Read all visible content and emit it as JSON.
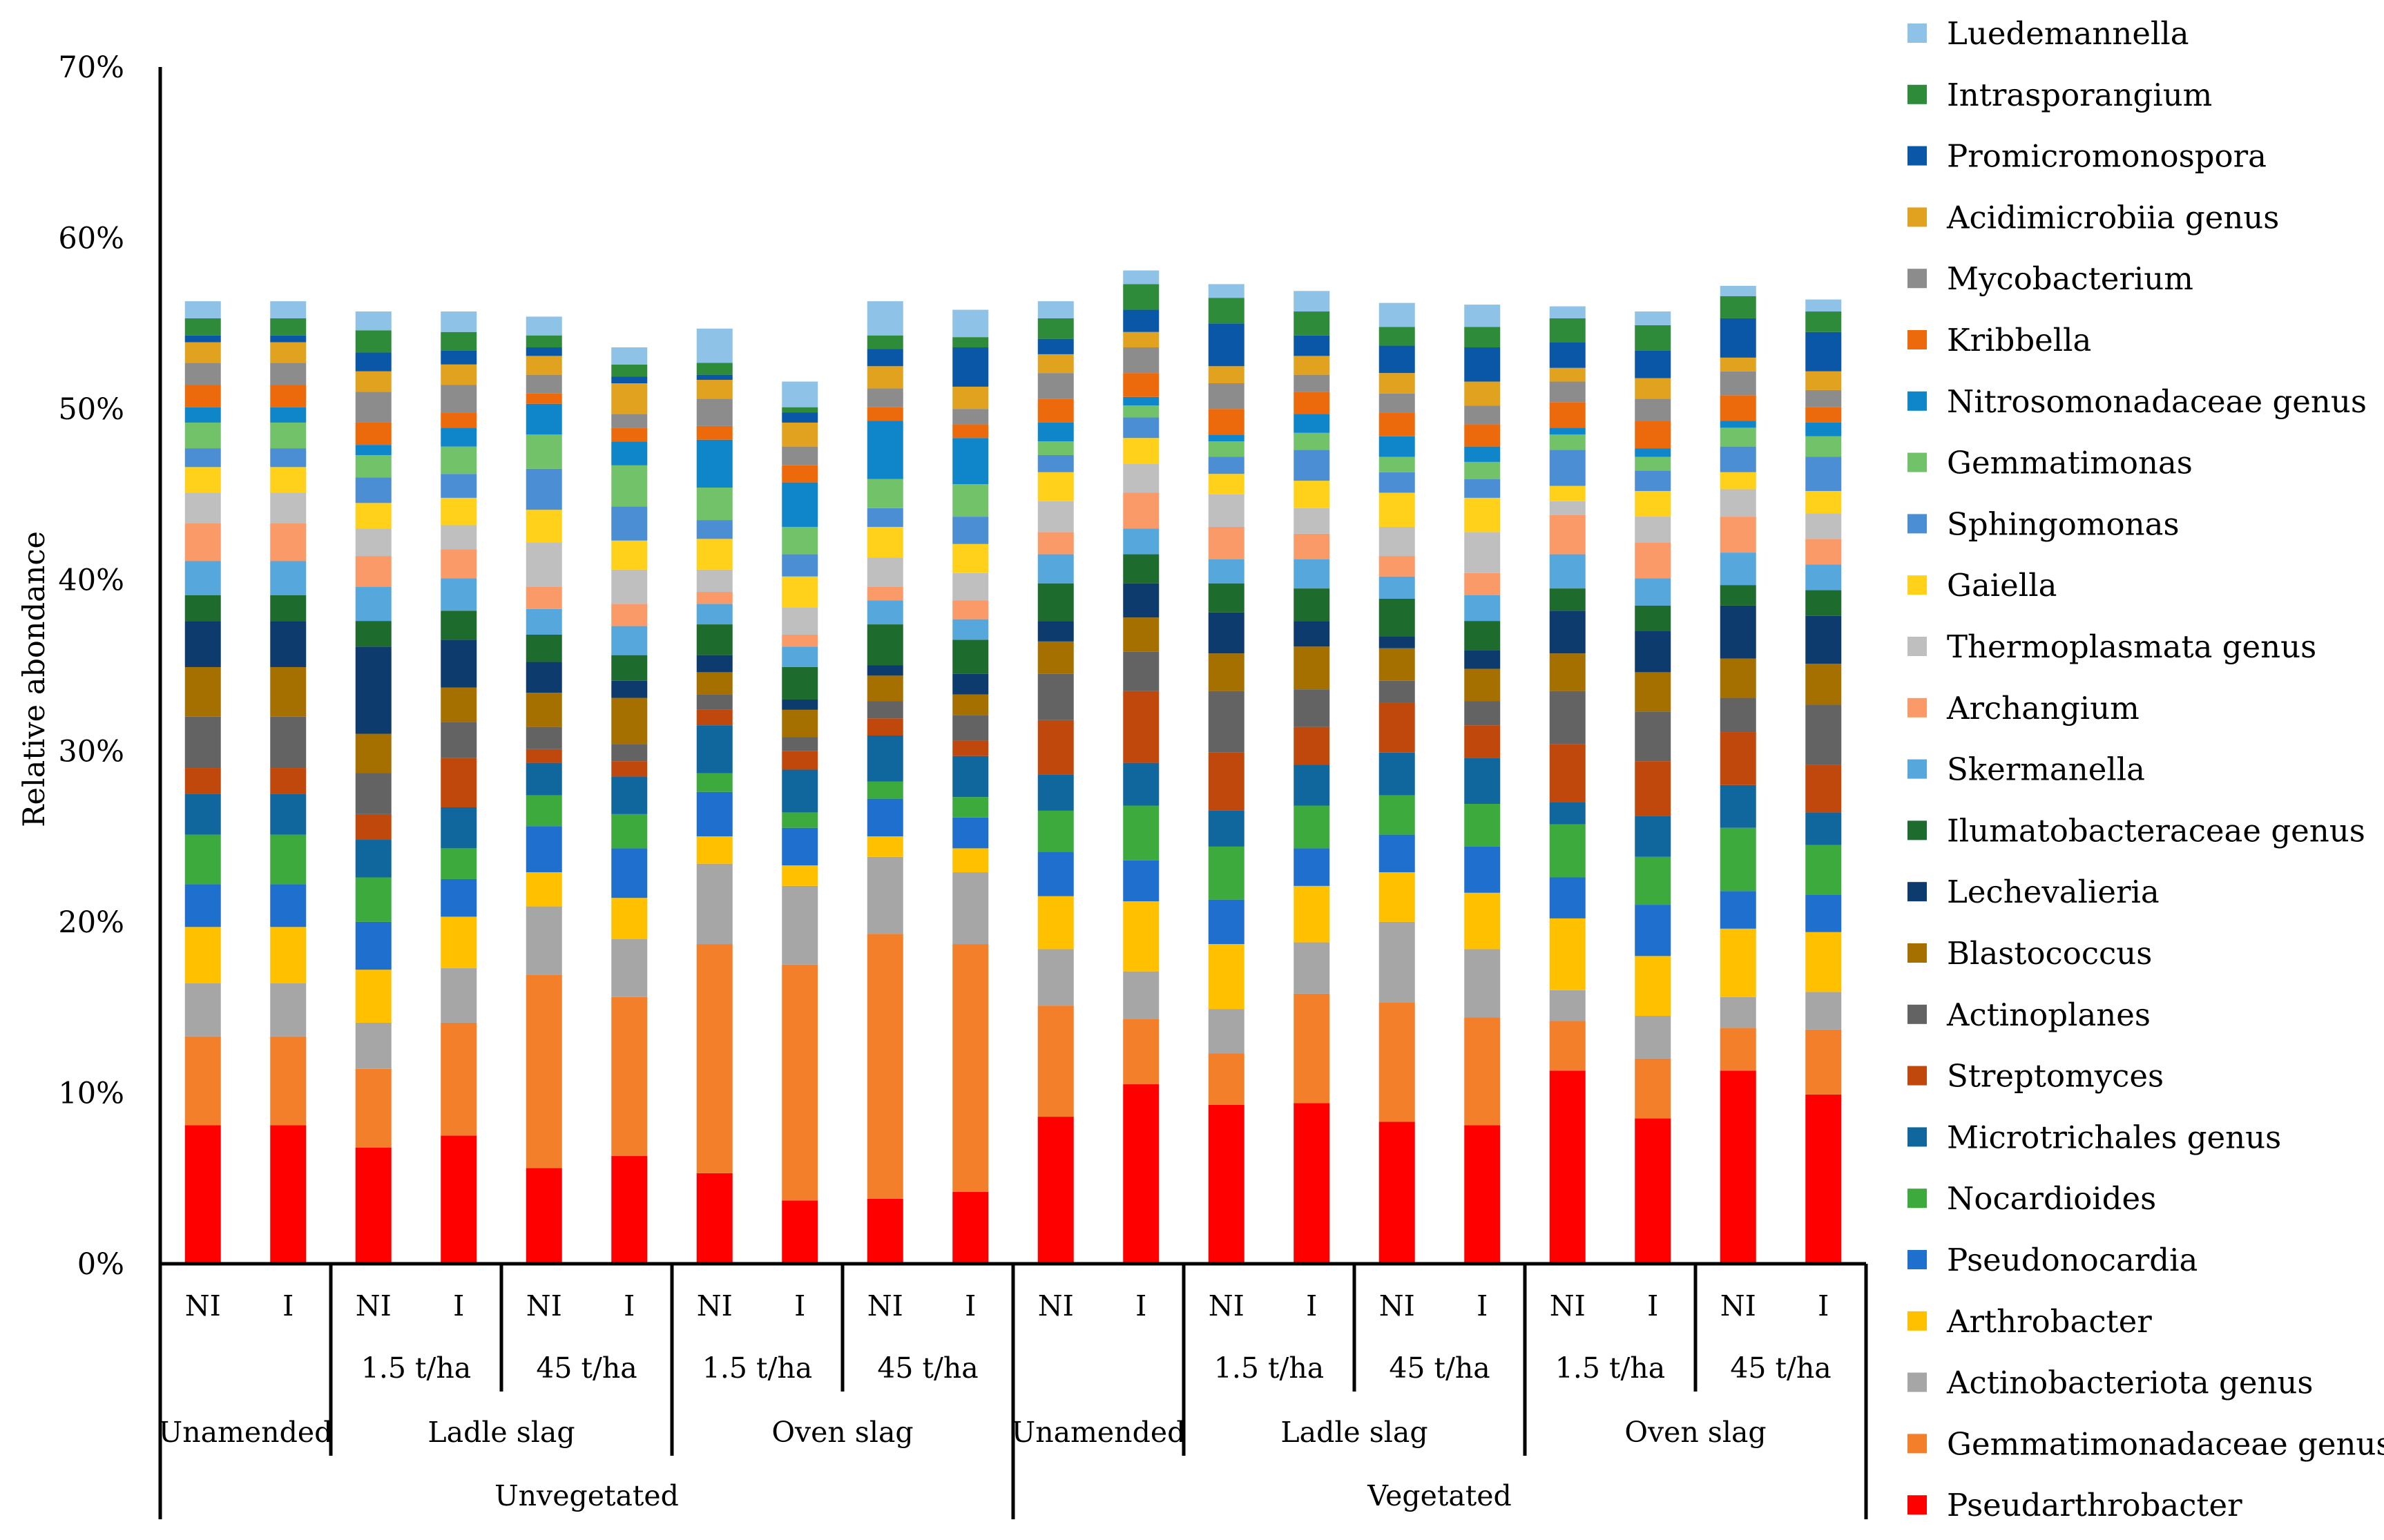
{
  "chart_data": {
    "type": "bar",
    "stacked": true,
    "ylabel": "Relative abondance",
    "ylim": [
      0,
      0.7
    ],
    "yticks": [
      "0%",
      "10%",
      "20%",
      "30%",
      "40%",
      "50%",
      "60%",
      "70%"
    ],
    "legend_position": "right",
    "bar_labels": [
      "NI",
      "I",
      "NI",
      "I",
      "NI",
      "I",
      "NI",
      "I",
      "NI",
      "I",
      "NI",
      "I",
      "NI",
      "I",
      "NI",
      "I",
      "NI",
      "I",
      "NI",
      "I"
    ],
    "groups_level1": [
      {
        "label": "",
        "span": 2
      },
      {
        "label": "1.5 t/ha",
        "span": 2
      },
      {
        "label": "45 t/ha",
        "span": 2
      },
      {
        "label": "1.5 t/ha",
        "span": 2
      },
      {
        "label": "45 t/ha",
        "span": 2
      },
      {
        "label": "",
        "span": 2
      },
      {
        "label": "1.5 t/ha",
        "span": 2
      },
      {
        "label": "45 t/ha",
        "span": 2
      },
      {
        "label": "1.5 t/ha",
        "span": 2
      },
      {
        "label": "45 t/ha",
        "span": 2
      }
    ],
    "groups_level2": [
      {
        "label": "Unamended",
        "span": 2
      },
      {
        "label": "Ladle slag",
        "span": 4
      },
      {
        "label": "Oven slag",
        "span": 4
      },
      {
        "label": "Unamended",
        "span": 2
      },
      {
        "label": "Ladle slag",
        "span": 4
      },
      {
        "label": "Oven slag",
        "span": 4
      }
    ],
    "groups_level3": [
      {
        "label": "Unvegetated",
        "span": 10
      },
      {
        "label": "Vegetated",
        "span": 10
      }
    ],
    "series": [
      {
        "name": "Pseudarthrobacter",
        "color": "#FF0000",
        "values": [
          0.081,
          0.081,
          0.068,
          0.075,
          0.056,
          0.063,
          0.053,
          0.037,
          0.038,
          0.042,
          0.086,
          0.105,
          0.093,
          0.094,
          0.083,
          0.081,
          0.113,
          0.085,
          0.113,
          0.099
        ]
      },
      {
        "name": "Gemmatimonadaceae genus",
        "color": "#F47F2A",
        "values": [
          0.052,
          0.052,
          0.046,
          0.066,
          0.113,
          0.093,
          0.134,
          0.138,
          0.155,
          0.145,
          0.065,
          0.038,
          0.03,
          0.064,
          0.07,
          0.063,
          0.029,
          0.035,
          0.025,
          0.038
        ]
      },
      {
        "name": "Actinobacteriota genus",
        "color": "#A6A6A6",
        "values": [
          0.031,
          0.031,
          0.027,
          0.032,
          0.04,
          0.034,
          0.047,
          0.046,
          0.045,
          0.042,
          0.033,
          0.028,
          0.026,
          0.03,
          0.047,
          0.04,
          0.018,
          0.025,
          0.018,
          0.022
        ]
      },
      {
        "name": "Arthrobacter",
        "color": "#FFC000",
        "values": [
          0.033,
          0.033,
          0.031,
          0.03,
          0.02,
          0.024,
          0.016,
          0.012,
          0.012,
          0.014,
          0.031,
          0.041,
          0.038,
          0.033,
          0.029,
          0.033,
          0.042,
          0.035,
          0.04,
          0.035
        ]
      },
      {
        "name": "Pseudonocardia",
        "color": "#1F6FCF",
        "values": [
          0.025,
          0.025,
          0.028,
          0.022,
          0.027,
          0.029,
          0.026,
          0.022,
          0.022,
          0.018,
          0.026,
          0.024,
          0.026,
          0.022,
          0.022,
          0.027,
          0.024,
          0.03,
          0.022,
          0.022
        ]
      },
      {
        "name": "Nocardioides",
        "color": "#3DAA3D",
        "values": [
          0.029,
          0.029,
          0.026,
          0.018,
          0.018,
          0.02,
          0.011,
          0.009,
          0.01,
          0.012,
          0.024,
          0.032,
          0.031,
          0.025,
          0.023,
          0.025,
          0.031,
          0.028,
          0.037,
          0.029
        ]
      },
      {
        "name": "Microtrichales genus",
        "color": "#10679E",
        "values": [
          0.024,
          0.024,
          0.022,
          0.024,
          0.019,
          0.022,
          0.028,
          0.025,
          0.027,
          0.024,
          0.021,
          0.025,
          0.021,
          0.024,
          0.025,
          0.027,
          0.013,
          0.024,
          0.025,
          0.019
        ]
      },
      {
        "name": "Streptomyces",
        "color": "#C0480C",
        "values": [
          0.015,
          0.015,
          0.015,
          0.029,
          0.008,
          0.009,
          0.009,
          0.011,
          0.01,
          0.009,
          0.032,
          0.042,
          0.034,
          0.022,
          0.029,
          0.019,
          0.034,
          0.032,
          0.031,
          0.028
        ]
      },
      {
        "name": "Actinoplanes",
        "color": "#636363",
        "values": [
          0.03,
          0.03,
          0.024,
          0.021,
          0.013,
          0.01,
          0.009,
          0.008,
          0.01,
          0.015,
          0.027,
          0.023,
          0.036,
          0.022,
          0.013,
          0.014,
          0.031,
          0.029,
          0.02,
          0.035
        ]
      },
      {
        "name": "Blastococcus",
        "color": "#A67000",
        "values": [
          0.029,
          0.029,
          0.023,
          0.02,
          0.02,
          0.027,
          0.013,
          0.016,
          0.015,
          0.012,
          0.019,
          0.02,
          0.022,
          0.025,
          0.019,
          0.019,
          0.022,
          0.023,
          0.023,
          0.024
        ]
      },
      {
        "name": "Lechevalieria",
        "color": "#0D3B6E",
        "values": [
          0.027,
          0.027,
          0.051,
          0.028,
          0.018,
          0.01,
          0.01,
          0.006,
          0.006,
          0.012,
          0.012,
          0.02,
          0.024,
          0.015,
          0.007,
          0.011,
          0.025,
          0.024,
          0.031,
          0.028
        ]
      },
      {
        "name": "Ilumatobacteraceae genus",
        "color": "#1E6B2E",
        "values": [
          0.015,
          0.015,
          0.015,
          0.017,
          0.016,
          0.015,
          0.018,
          0.019,
          0.024,
          0.02,
          0.022,
          0.017,
          0.017,
          0.019,
          0.022,
          0.017,
          0.013,
          0.015,
          0.012,
          0.015
        ]
      },
      {
        "name": "Skermanella",
        "color": "#56A8DC",
        "values": [
          0.02,
          0.02,
          0.02,
          0.019,
          0.015,
          0.017,
          0.012,
          0.012,
          0.014,
          0.012,
          0.017,
          0.015,
          0.014,
          0.017,
          0.013,
          0.015,
          0.02,
          0.016,
          0.019,
          0.015
        ]
      },
      {
        "name": "Archangium",
        "color": "#F99A68",
        "values": [
          0.022,
          0.022,
          0.018,
          0.017,
          0.013,
          0.013,
          0.007,
          0.007,
          0.008,
          0.011,
          0.013,
          0.021,
          0.019,
          0.015,
          0.012,
          0.013,
          0.023,
          0.021,
          0.021,
          0.015
        ]
      },
      {
        "name": "Thermoplasmata genus",
        "color": "#BFBFBF",
        "values": [
          0.018,
          0.018,
          0.016,
          0.014,
          0.026,
          0.02,
          0.013,
          0.016,
          0.017,
          0.016,
          0.018,
          0.017,
          0.019,
          0.015,
          0.017,
          0.024,
          0.008,
          0.015,
          0.016,
          0.015
        ]
      },
      {
        "name": "Gaiella",
        "color": "#FFD11A",
        "values": [
          0.015,
          0.015,
          0.015,
          0.016,
          0.019,
          0.017,
          0.018,
          0.018,
          0.018,
          0.017,
          0.017,
          0.015,
          0.012,
          0.016,
          0.02,
          0.02,
          0.009,
          0.015,
          0.01,
          0.013
        ]
      },
      {
        "name": "Sphingomonas",
        "color": "#4C8ED4",
        "values": [
          0.011,
          0.011,
          0.015,
          0.014,
          0.024,
          0.02,
          0.011,
          0.013,
          0.011,
          0.016,
          0.01,
          0.012,
          0.01,
          0.018,
          0.012,
          0.011,
          0.021,
          0.012,
          0.015,
          0.02
        ]
      },
      {
        "name": "Gemmatimonas",
        "color": "#72C26A",
        "values": [
          0.015,
          0.015,
          0.013,
          0.016,
          0.02,
          0.024,
          0.019,
          0.016,
          0.017,
          0.019,
          0.008,
          0.007,
          0.009,
          0.01,
          0.009,
          0.01,
          0.009,
          0.008,
          0.011,
          0.012
        ]
      },
      {
        "name": "Nitrosomonadaceae genus",
        "color": "#0E86C9",
        "values": [
          0.009,
          0.009,
          0.006,
          0.011,
          0.018,
          0.014,
          0.028,
          0.026,
          0.034,
          0.027,
          0.011,
          0.005,
          0.004,
          0.011,
          0.012,
          0.009,
          0.004,
          0.005,
          0.004,
          0.008
        ]
      },
      {
        "name": "Kribbella",
        "color": "#ED6A0C",
        "values": [
          0.013,
          0.013,
          0.013,
          0.009,
          0.006,
          0.008,
          0.008,
          0.01,
          0.008,
          0.008,
          0.014,
          0.014,
          0.015,
          0.013,
          0.014,
          0.013,
          0.015,
          0.016,
          0.015,
          0.009
        ]
      },
      {
        "name": "Mycobacterium",
        "color": "#8C8C8C",
        "values": [
          0.013,
          0.013,
          0.018,
          0.016,
          0.011,
          0.008,
          0.016,
          0.011,
          0.011,
          0.009,
          0.015,
          0.015,
          0.015,
          0.01,
          0.011,
          0.011,
          0.012,
          0.013,
          0.014,
          0.01
        ]
      },
      {
        "name": "Acidimicrobiia genus",
        "color": "#E0A21F",
        "values": [
          0.012,
          0.012,
          0.012,
          0.012,
          0.011,
          0.018,
          0.011,
          0.014,
          0.013,
          0.013,
          0.011,
          0.009,
          0.01,
          0.011,
          0.012,
          0.014,
          0.008,
          0.012,
          0.008,
          0.011
        ]
      },
      {
        "name": "Promicromonospora",
        "color": "#0A57A8",
        "values": [
          0.004,
          0.004,
          0.011,
          0.008,
          0.005,
          0.004,
          0.003,
          0.006,
          0.01,
          0.023,
          0.009,
          0.013,
          0.025,
          0.012,
          0.016,
          0.02,
          0.015,
          0.016,
          0.023,
          0.023
        ]
      },
      {
        "name": "Intrasporangium",
        "color": "#2E8B3A",
        "values": [
          0.01,
          0.01,
          0.013,
          0.011,
          0.007,
          0.007,
          0.007,
          0.003,
          0.008,
          0.006,
          0.012,
          0.015,
          0.015,
          0.014,
          0.011,
          0.012,
          0.014,
          0.015,
          0.013,
          0.012
        ]
      },
      {
        "name": "Luedemannella",
        "color": "#8EC2E6",
        "values": [
          0.01,
          0.01,
          0.011,
          0.012,
          0.011,
          0.01,
          0.02,
          0.015,
          0.02,
          0.016,
          0.01,
          0.008,
          0.008,
          0.012,
          0.014,
          0.013,
          0.007,
          0.008,
          0.006,
          0.007
        ]
      }
    ]
  }
}
